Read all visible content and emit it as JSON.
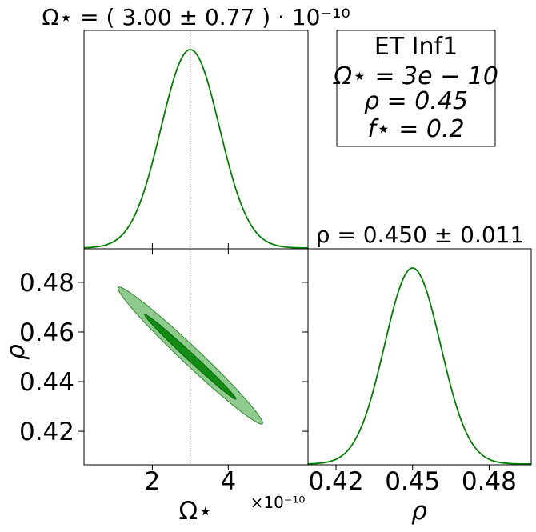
{
  "chart_data": [
    {
      "type": "line",
      "panel": "marginal-omega",
      "title": "Ω⋆ = ( 3.00 ± 0.77 ) · 10⁻¹⁰",
      "xlabel": "",
      "ylabel": "",
      "xlim": [
        0.2,
        6.1
      ],
      "truth": 3.0,
      "mean": 3.0,
      "sigma": 0.77,
      "x_unit_scale": "×10⁻¹⁰",
      "series": [
        {
          "color": "#008000"
        }
      ]
    },
    {
      "type": "line",
      "panel": "marginal-rho",
      "title": "ρ = 0.450 ± 0.011",
      "xlabel": "ρ",
      "ylabel": "",
      "xlim": [
        0.409,
        0.4965
      ],
      "x_ticks": [
        "0.42",
        "0.45",
        "0.48"
      ],
      "mean": 0.45,
      "sigma": 0.011,
      "series": [
        {
          "color": "#008000"
        }
      ]
    },
    {
      "type": "scatter",
      "panel": "joint-contour",
      "xlabel": "Ω⋆",
      "ylabel": "ρ",
      "x_unit_scale": "×10⁻¹⁰",
      "xlim": [
        0.2,
        6.1
      ],
      "ylim": [
        0.4065,
        0.4935
      ],
      "x_ticks": [
        "2",
        "4"
      ],
      "y_ticks": [
        "0.42",
        "0.44",
        "0.46",
        "0.48"
      ],
      "truth": 3.0,
      "contours": [
        {
          "level": "outer",
          "fill": "#8fcb8f",
          "edge": "#2e8b2e",
          "ends": [
            [
              1.1,
              0.478
            ],
            [
              4.9,
              0.423
            ]
          ],
          "half_width": 0.09
        },
        {
          "level": "inner",
          "fill": "#138c13",
          "edge": "#006400",
          "ends": [
            [
              1.8,
              0.467
            ],
            [
              4.2,
              0.433
            ]
          ],
          "half_width": 0.06
        }
      ]
    }
  ],
  "legend": {
    "lines": [
      "ET Inf1",
      "Ω⋆ = 3e − 10",
      "ρ = 0.45",
      "f⋆ = 0.2"
    ]
  }
}
